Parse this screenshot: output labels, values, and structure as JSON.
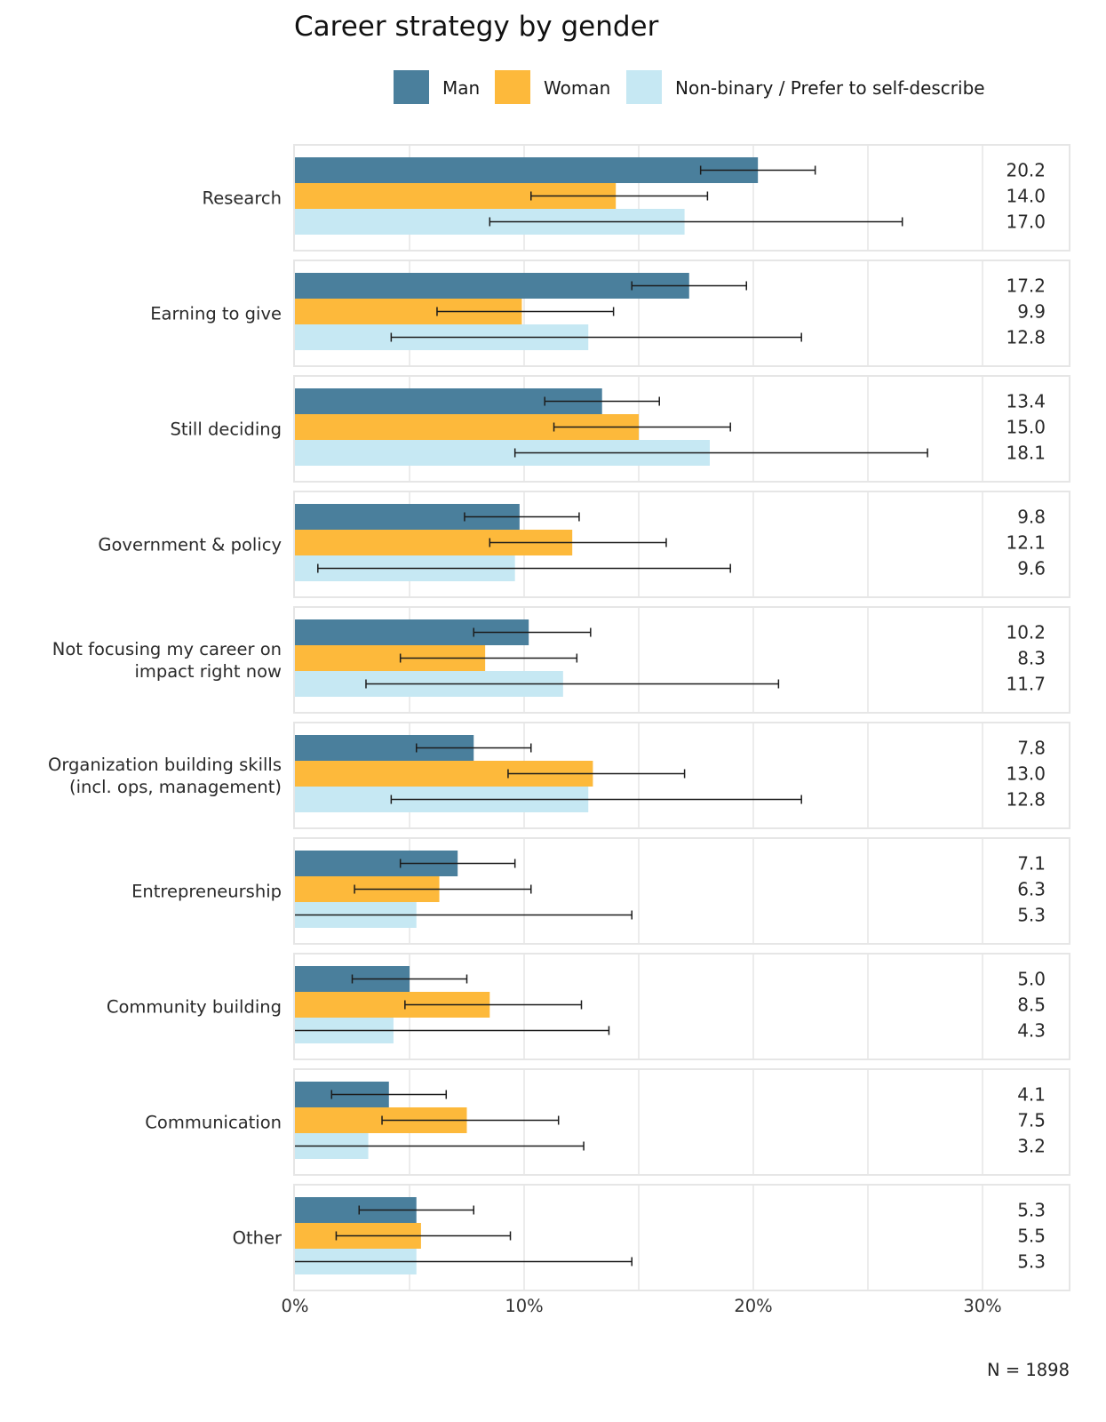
{
  "chart_data": {
    "type": "bar",
    "orientation": "horizontal",
    "title": "Career strategy by gender",
    "xlabel": "",
    "ylabel": "",
    "xlim": [
      0,
      33.8
    ],
    "x_ticks": [
      0,
      10,
      20,
      30
    ],
    "x_tick_labels": [
      "0%",
      "10%",
      "20%",
      "30%"
    ],
    "x_minor_grid": [
      5,
      15,
      25
    ],
    "grid": true,
    "legend_position": "top",
    "note": "N = 1898",
    "categories": [
      [
        "Research"
      ],
      [
        "Earning to give"
      ],
      [
        "Still deciding"
      ],
      [
        "Government & policy"
      ],
      [
        "Not focusing my career on",
        "impact right now"
      ],
      [
        "Organization building skills",
        "(incl. ops, management)"
      ],
      [
        "Entrepreneurship"
      ],
      [
        "Community building"
      ],
      [
        "Communication"
      ],
      [
        "Other"
      ]
    ],
    "series": [
      {
        "name": "Man",
        "color": "#4A7F9C",
        "values": [
          20.2,
          17.2,
          13.4,
          9.8,
          10.2,
          7.8,
          7.1,
          5.0,
          4.1,
          5.3
        ],
        "error_low": [
          17.7,
          14.7,
          10.9,
          7.4,
          7.8,
          5.3,
          4.6,
          2.5,
          1.6,
          2.8
        ],
        "error_high": [
          22.7,
          19.7,
          15.9,
          12.4,
          12.9,
          10.3,
          9.6,
          7.5,
          6.6,
          7.8
        ]
      },
      {
        "name": "Woman",
        "color": "#FDB93B",
        "values": [
          14.0,
          9.9,
          15.0,
          12.1,
          8.3,
          13.0,
          6.3,
          8.5,
          7.5,
          5.5
        ],
        "error_low": [
          10.3,
          6.2,
          11.3,
          8.5,
          4.6,
          9.3,
          2.6,
          4.8,
          3.8,
          1.8
        ],
        "error_high": [
          18.0,
          13.9,
          19.0,
          16.2,
          12.3,
          17.0,
          10.3,
          12.5,
          11.5,
          9.4
        ]
      },
      {
        "name": "Non-binary / Prefer to self-describe",
        "color": "#C6E8F3",
        "values": [
          17.0,
          12.8,
          18.1,
          9.6,
          11.7,
          12.8,
          5.3,
          4.3,
          3.2,
          5.3
        ],
        "error_low": [
          8.5,
          4.2,
          9.6,
          1.0,
          3.1,
          4.2,
          0,
          0,
          0,
          0
        ],
        "error_high": [
          26.5,
          22.1,
          27.6,
          19.0,
          21.1,
          22.1,
          14.7,
          13.7,
          12.6,
          14.7
        ]
      }
    ],
    "value_labels": [
      [
        "20.2",
        "14.0",
        "17.0"
      ],
      [
        "17.2",
        "9.9",
        "12.8"
      ],
      [
        "13.4",
        "15.0",
        "18.1"
      ],
      [
        "9.8",
        "12.1",
        "9.6"
      ],
      [
        "10.2",
        "8.3",
        "11.7"
      ],
      [
        "7.8",
        "13.0",
        "12.8"
      ],
      [
        "7.1",
        "6.3",
        "5.3"
      ],
      [
        "5.0",
        "8.5",
        "4.3"
      ],
      [
        "4.1",
        "7.5",
        "3.2"
      ],
      [
        "5.3",
        "5.5",
        "5.3"
      ]
    ]
  }
}
